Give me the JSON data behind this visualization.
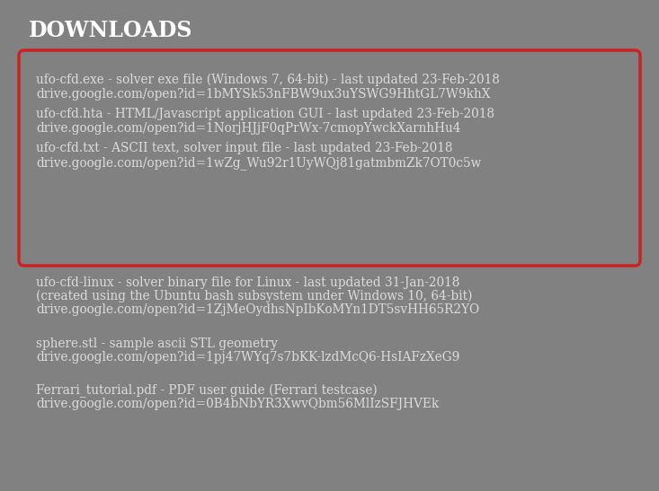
{
  "title": "DOWNLOADS",
  "background_color": "#818181",
  "title_color": "#ffffff",
  "text_color": "#dcdcdc",
  "box_border_color": "#cc2222",
  "box_background_color": "#818181",
  "title_fontsize": 17,
  "body_fontsize": 9.8,
  "boxed_items": [
    {
      "line1": "ufo-cfd.exe - solver exe file (Windows 7, 64-bit) - last updated 23-Feb-2018",
      "line2": "drive.google.com/open?id=1bMYSk53nFBW9ux3uYSWG9HhtGL7W9khX"
    },
    {
      "line1": "ufo-cfd.hta - HTML/Javascript application GUI - last updated 23-Feb-2018",
      "line2": "drive.google.com/open?id=1NorjHJjF0qPrWx-7cmopYwckXarnhHu4"
    },
    {
      "line1": "ufo-cfd.txt - ASCII text, solver input file - last updated 23-Feb-2018",
      "line2": "drive.google.com/open?id=1wZg_Wu92r1UyWQj81gatmbmZk7OT0c5w"
    }
  ],
  "outside_items": [
    {
      "lines": [
        "ufo-cfd-linux - solver binary file for Linux - last updated 31-Jan-2018",
        "(created using the Ubuntu bash subsystem under Windows 10, 64-bit)",
        "drive.google.com/open?id=1ZjMeOydhsNpIbKoMYn1DT5svHH65R2YO"
      ]
    },
    {
      "lines": [
        "sphere.stl - sample ascii STL geometry",
        "drive.google.com/open?id=1pj47WYq7s7bKK-lzdMcQ6-HsIAFzXeG9"
      ]
    },
    {
      "lines": [
        "Ferrari_tutorial.pdf - PDF user guide (Ferrari testcase)",
        "drive.google.com/open?id=0B4bNbYR3XwvQbm56MlIzSFJHVEk"
      ]
    }
  ],
  "fig_width": 7.33,
  "fig_height": 5.47,
  "dpi": 100
}
